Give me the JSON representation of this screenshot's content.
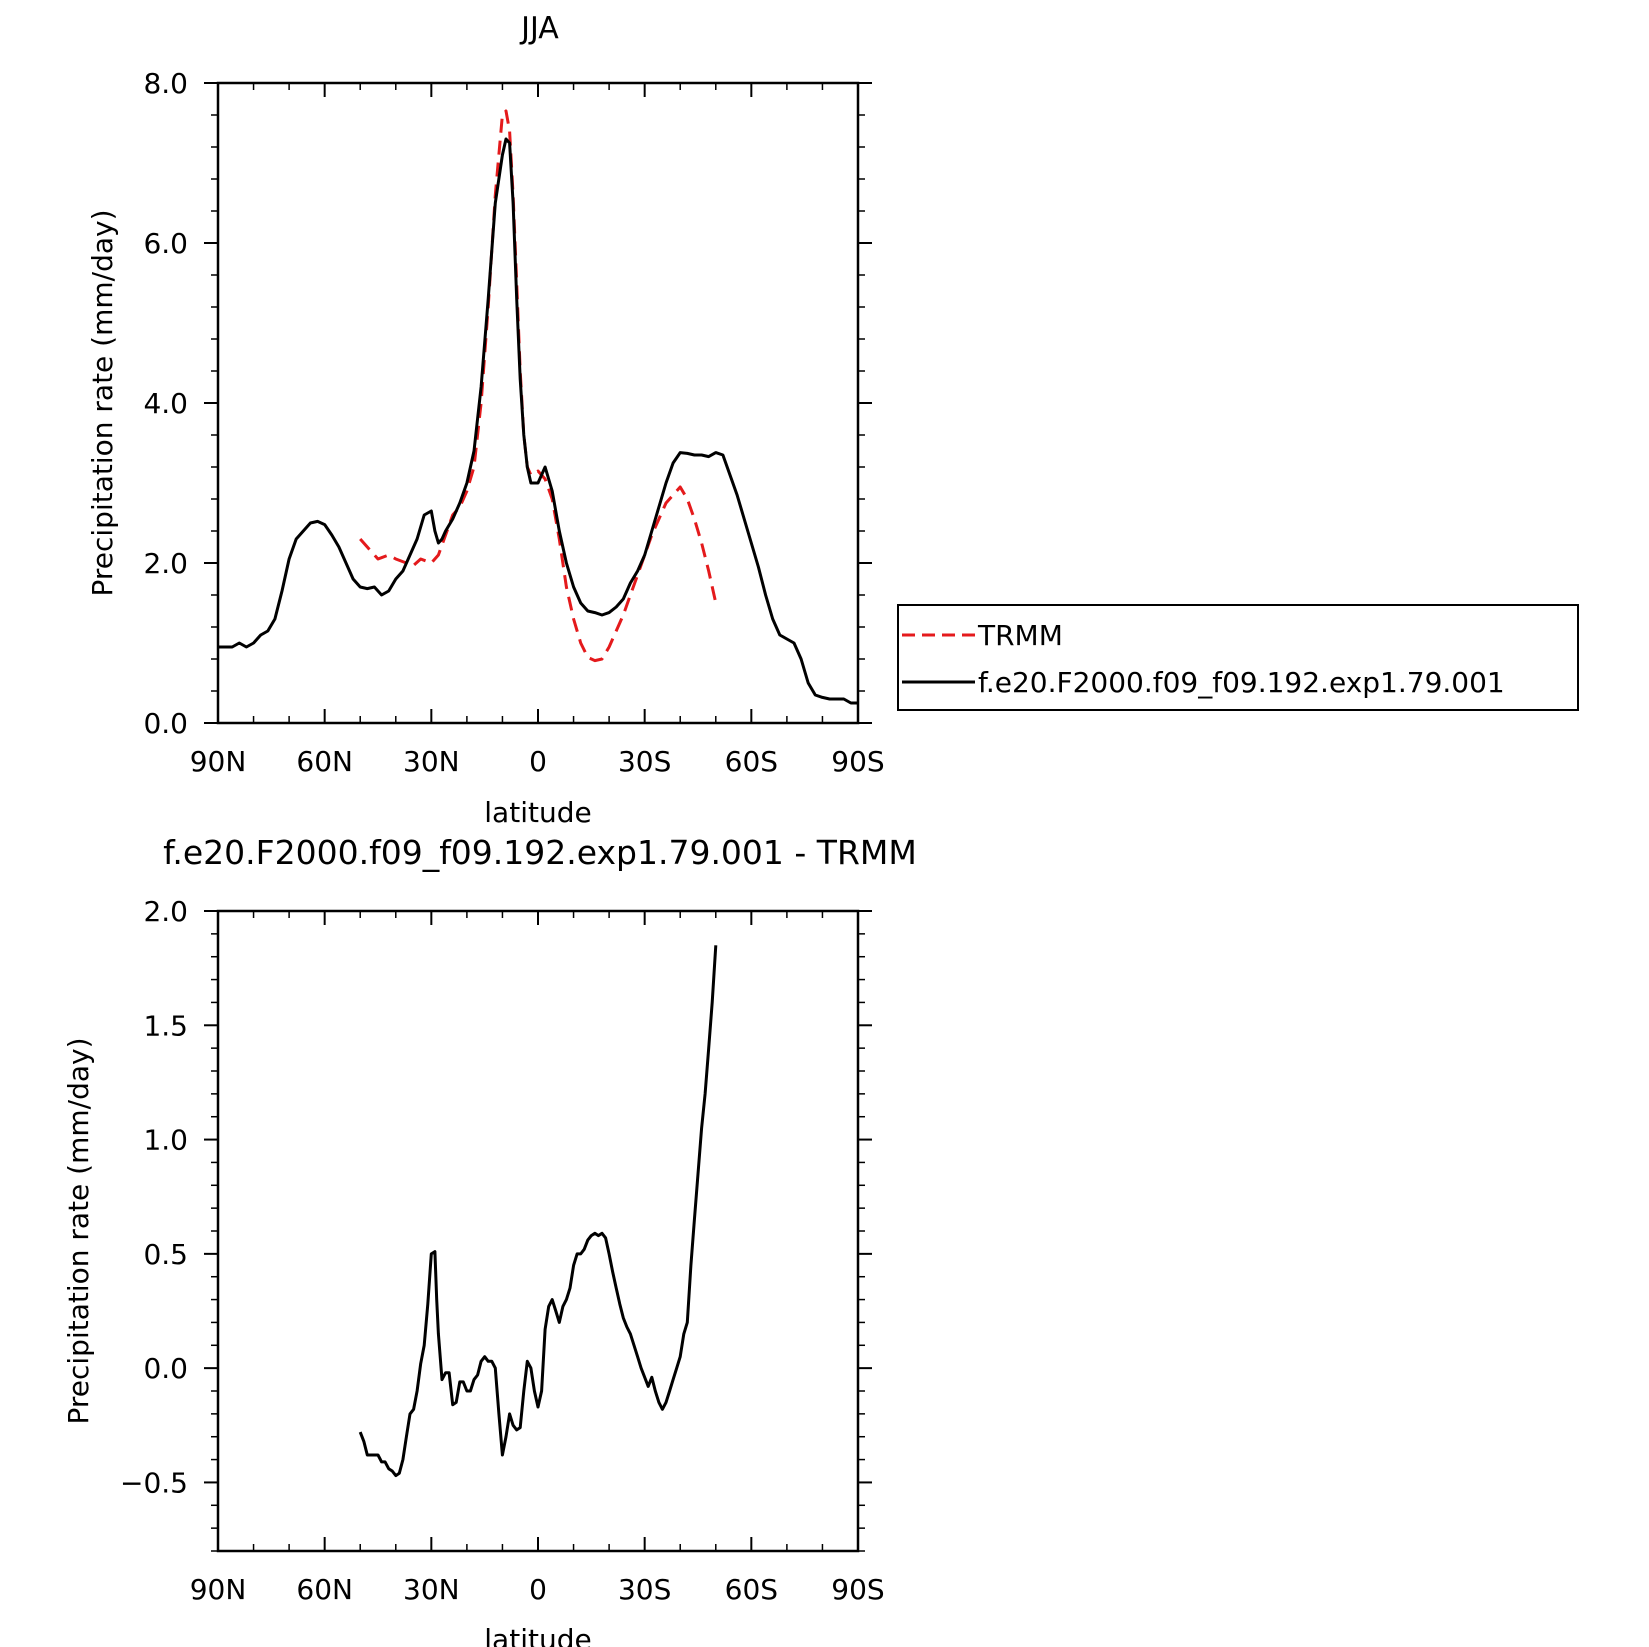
{
  "chart_data": [
    {
      "type": "line",
      "title": "JJA",
      "xlabel": "latitude",
      "ylabel": "Precipitation rate (mm/day)",
      "xlim": [
        90,
        -90
      ],
      "ylim": [
        0,
        8
      ],
      "xticks": [
        {
          "value": 90,
          "label": "90N"
        },
        {
          "value": 60,
          "label": "60N"
        },
        {
          "value": 30,
          "label": "30N"
        },
        {
          "value": 0,
          "label": "0"
        },
        {
          "value": -30,
          "label": "30S"
        },
        {
          "value": -60,
          "label": "60S"
        },
        {
          "value": -90,
          "label": "90S"
        }
      ],
      "yticks": [
        {
          "value": 0,
          "label": "0.0"
        },
        {
          "value": 2,
          "label": "2.0"
        },
        {
          "value": 4,
          "label": "4.0"
        },
        {
          "value": 6,
          "label": "6.0"
        },
        {
          "value": 8,
          "label": "8.0"
        }
      ],
      "legend_position": "right",
      "series": [
        {
          "name": "TRMM",
          "color": "#e41a1c",
          "style": "dashed",
          "x": [
            50,
            48,
            45,
            42,
            40,
            37,
            35,
            33,
            30,
            28,
            26,
            24,
            22,
            20,
            18,
            16,
            14,
            12,
            10,
            9,
            8,
            7,
            6,
            5,
            4,
            3,
            2,
            0,
            -2,
            -4,
            -6,
            -8,
            -10,
            -12,
            -14,
            -16,
            -18,
            -20,
            -22,
            -24,
            -26,
            -28,
            -30,
            -32,
            -34,
            -36,
            -38,
            -40,
            -42,
            -44,
            -46,
            -48,
            -50
          ],
          "y": [
            2.3,
            2.2,
            2.05,
            2.1,
            2.05,
            2.0,
            1.97,
            2.05,
            2.0,
            2.1,
            2.35,
            2.6,
            2.7,
            2.9,
            3.2,
            4.0,
            5.2,
            6.6,
            7.6,
            7.65,
            7.4,
            6.6,
            5.5,
            4.4,
            3.6,
            3.2,
            3.1,
            3.15,
            3.05,
            2.8,
            2.3,
            1.7,
            1.3,
            1.0,
            0.82,
            0.78,
            0.8,
            0.95,
            1.15,
            1.35,
            1.6,
            1.85,
            2.1,
            2.35,
            2.55,
            2.75,
            2.85,
            2.95,
            2.8,
            2.55,
            2.25,
            1.9,
            1.5
          ]
        },
        {
          "name": "f.e20.F2000.f09_f09.192.exp1.79.001",
          "color": "#000000",
          "style": "solid",
          "x": [
            90,
            88,
            86,
            84,
            82,
            80,
            78,
            76,
            74,
            72,
            70,
            68,
            66,
            64,
            62,
            60,
            58,
            56,
            54,
            52,
            50,
            48,
            46,
            44,
            42,
            40,
            38,
            36,
            34,
            32,
            30,
            29,
            28,
            27,
            26,
            24,
            22,
            20,
            18,
            16,
            14,
            12,
            10,
            9,
            8,
            7,
            6,
            5,
            4,
            3,
            2,
            0,
            -2,
            -4,
            -6,
            -8,
            -10,
            -12,
            -14,
            -16,
            -18,
            -20,
            -22,
            -24,
            -26,
            -28,
            -30,
            -32,
            -34,
            -36,
            -38,
            -40,
            -42,
            -44,
            -46,
            -48,
            -50,
            -52,
            -54,
            -56,
            -58,
            -60,
            -62,
            -64,
            -66,
            -68,
            -70,
            -72,
            -74,
            -76,
            -78,
            -80,
            -82,
            -84,
            -86,
            -88,
            -90
          ],
          "y": [
            0.95,
            0.95,
            0.95,
            1.0,
            0.95,
            1.0,
            1.1,
            1.15,
            1.3,
            1.65,
            2.05,
            2.3,
            2.4,
            2.5,
            2.52,
            2.48,
            2.35,
            2.2,
            2.0,
            1.8,
            1.7,
            1.68,
            1.7,
            1.6,
            1.65,
            1.8,
            1.9,
            2.1,
            2.3,
            2.6,
            2.65,
            2.4,
            2.25,
            2.3,
            2.4,
            2.55,
            2.75,
            3.0,
            3.4,
            4.2,
            5.3,
            6.5,
            7.1,
            7.3,
            7.25,
            6.5,
            5.3,
            4.3,
            3.6,
            3.2,
            3.0,
            3.0,
            3.2,
            2.9,
            2.4,
            2.0,
            1.7,
            1.5,
            1.4,
            1.38,
            1.35,
            1.38,
            1.45,
            1.55,
            1.75,
            1.9,
            2.1,
            2.4,
            2.7,
            3.0,
            3.25,
            3.38,
            3.37,
            3.35,
            3.35,
            3.33,
            3.38,
            3.35,
            3.1,
            2.85,
            2.55,
            2.25,
            1.95,
            1.6,
            1.3,
            1.1,
            1.05,
            1.0,
            0.8,
            0.5,
            0.35,
            0.32,
            0.3,
            0.3,
            0.3,
            0.25,
            0.25
          ]
        }
      ]
    },
    {
      "type": "line",
      "title": "f.e20.F2000.f09_f09.192.exp1.79.001 - TRMM",
      "xlabel": "latitude",
      "ylabel": "Precipitation rate (mm/day)",
      "xlim": [
        90,
        -90
      ],
      "ylim": [
        -0.8,
        2.0
      ],
      "xticks": [
        {
          "value": 90,
          "label": "90N"
        },
        {
          "value": 60,
          "label": "60N"
        },
        {
          "value": 30,
          "label": "30N"
        },
        {
          "value": 0,
          "label": "0"
        },
        {
          "value": -30,
          "label": "30S"
        },
        {
          "value": -60,
          "label": "60S"
        },
        {
          "value": -90,
          "label": "90S"
        }
      ],
      "yticks": [
        {
          "value": -0.5,
          "label": "−0.5"
        },
        {
          "value": 0,
          "label": "0.0"
        },
        {
          "value": 0.5,
          "label": "0.5"
        },
        {
          "value": 1.0,
          "label": "1.0"
        },
        {
          "value": 1.5,
          "label": "1.5"
        },
        {
          "value": 2.0,
          "label": "2.0"
        }
      ],
      "series": [
        {
          "color": "#000000",
          "style": "solid",
          "x": [
            50,
            49,
            48,
            47,
            46,
            45,
            44,
            43,
            42,
            41,
            40,
            39,
            38,
            37,
            36,
            35,
            34,
            33,
            32,
            31,
            30,
            29,
            28.5,
            28,
            27,
            26,
            25,
            24,
            23,
            22,
            21,
            20,
            19,
            18,
            17,
            16,
            15,
            14,
            13,
            12,
            11,
            10,
            9,
            8,
            7,
            6,
            5,
            4,
            3,
            2,
            1,
            0,
            -1,
            -2,
            -3,
            -4,
            -5,
            -6,
            -7,
            -8,
            -9,
            -10,
            -11,
            -12,
            -13,
            -14,
            -15,
            -16,
            -17,
            -18,
            -19,
            -20,
            -21,
            -22,
            -23,
            -24,
            -25,
            -26,
            -27,
            -28,
            -29,
            -30,
            -31,
            -32,
            -33,
            -34,
            -35,
            -36,
            -37,
            -38,
            -39,
            -40,
            -41,
            -42,
            -43,
            -44,
            -45,
            -46,
            -47,
            -48,
            -49,
            -50
          ],
          "y": [
            -0.28,
            -0.32,
            -0.38,
            -0.38,
            -0.38,
            -0.38,
            -0.41,
            -0.41,
            -0.44,
            -0.45,
            -0.47,
            -0.46,
            -0.4,
            -0.3,
            -0.2,
            -0.18,
            -0.1,
            0.02,
            0.1,
            0.28,
            0.5,
            0.51,
            0.3,
            0.15,
            -0.05,
            -0.02,
            -0.02,
            -0.16,
            -0.15,
            -0.06,
            -0.06,
            -0.1,
            -0.1,
            -0.05,
            -0.03,
            0.03,
            0.05,
            0.03,
            0.03,
            0.0,
            -0.2,
            -0.38,
            -0.3,
            -0.2,
            -0.25,
            -0.27,
            -0.26,
            -0.1,
            0.03,
            0.0,
            -0.1,
            -0.17,
            -0.1,
            0.17,
            0.27,
            0.3,
            0.25,
            0.2,
            0.27,
            0.3,
            0.35,
            0.45,
            0.5,
            0.5,
            0.52,
            0.56,
            0.58,
            0.59,
            0.58,
            0.59,
            0.57,
            0.5,
            0.42,
            0.35,
            0.28,
            0.22,
            0.18,
            0.15,
            0.1,
            0.05,
            0.0,
            -0.04,
            -0.08,
            -0.04,
            -0.1,
            -0.15,
            -0.18,
            -0.15,
            -0.1,
            -0.05,
            0.0,
            0.05,
            0.15,
            0.2,
            0.45,
            0.65,
            0.85,
            1.05,
            1.2,
            1.4,
            1.6,
            1.85
          ]
        }
      ]
    }
  ]
}
